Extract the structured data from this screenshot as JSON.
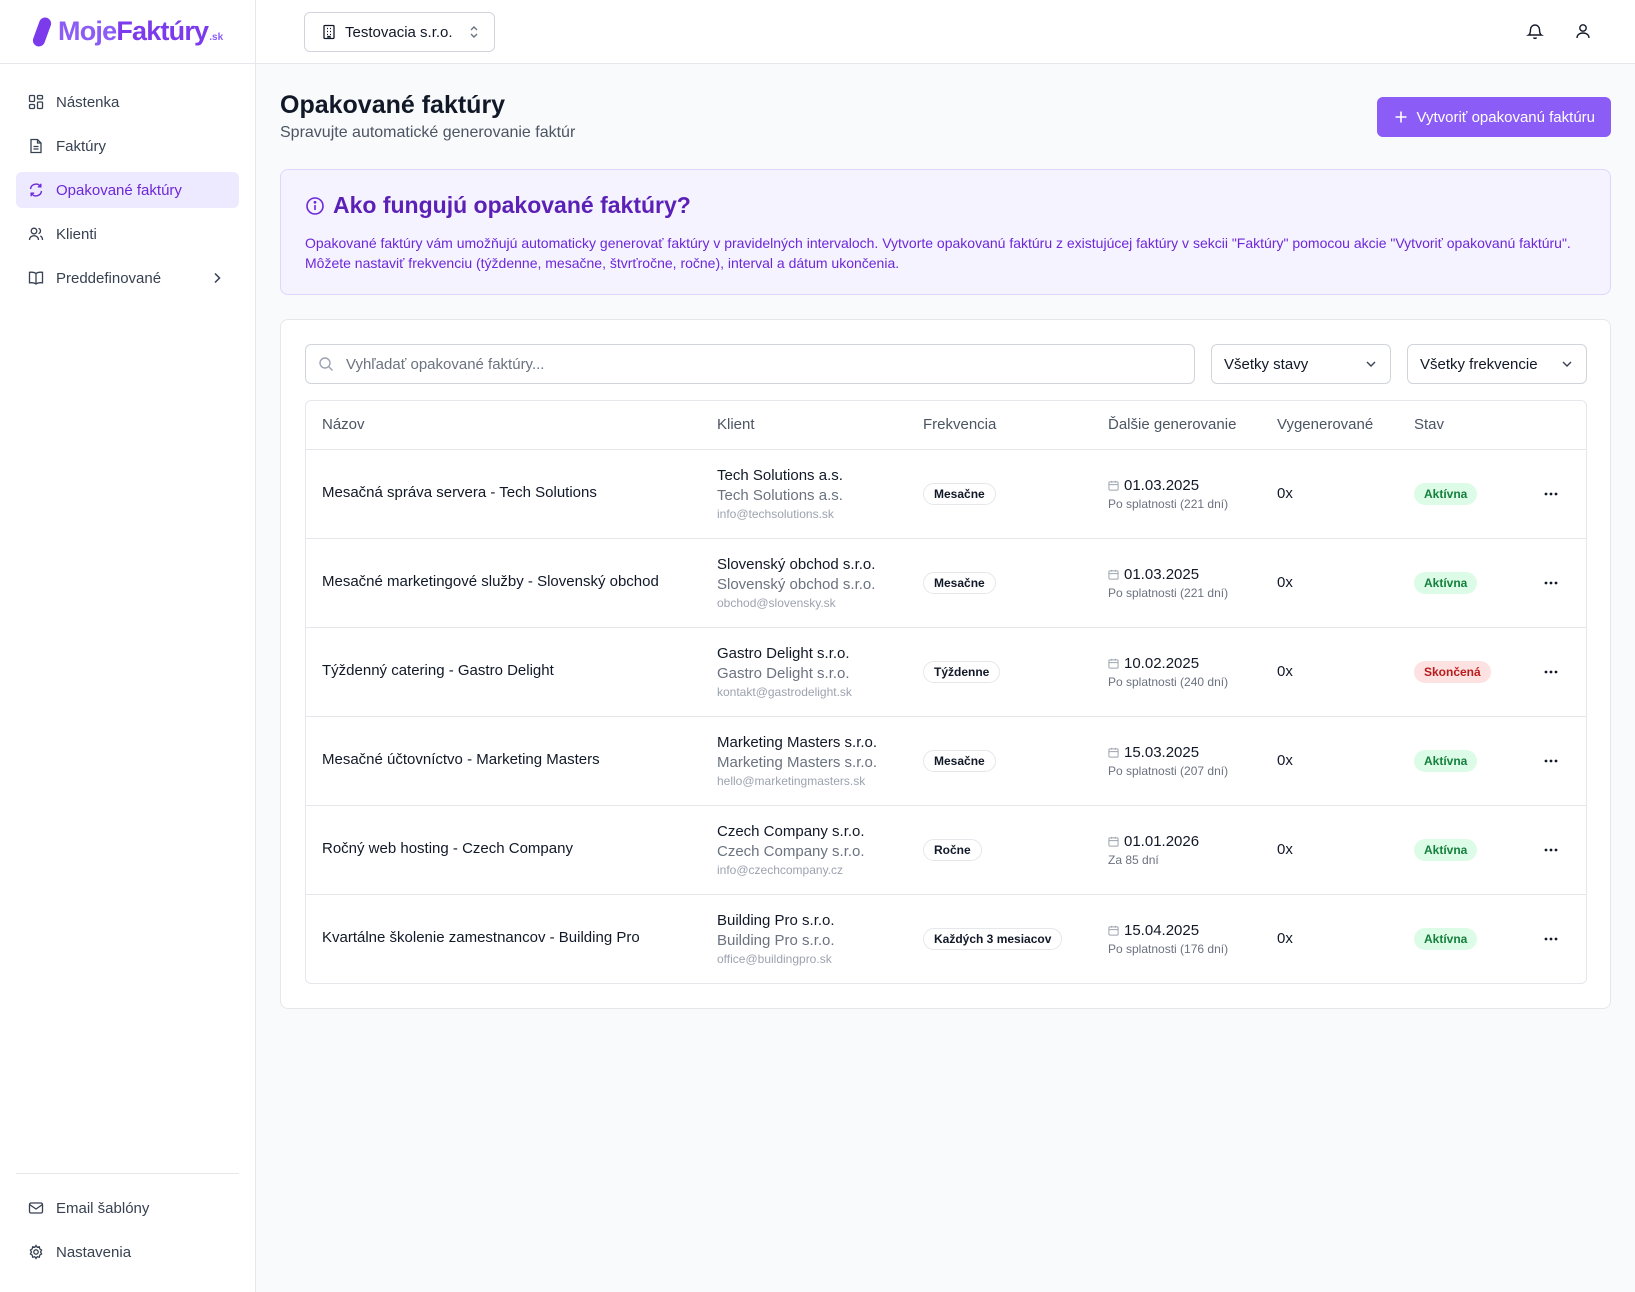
{
  "brand": {
    "part1": "Moje",
    "part2": "Faktúry",
    "suffix": ".sk"
  },
  "sidebar": {
    "items": [
      {
        "label": "Nástenka",
        "icon": "dashboard-icon"
      },
      {
        "label": "Faktúry",
        "icon": "file-icon"
      },
      {
        "label": "Opakované faktúry",
        "icon": "refresh-icon",
        "active": true
      },
      {
        "label": "Klienti",
        "icon": "users-icon"
      },
      {
        "label": "Preddefinované",
        "icon": "book-icon"
      }
    ],
    "bottom": [
      {
        "label": "Email šablóny",
        "icon": "mail-icon"
      },
      {
        "label": "Nastavenia",
        "icon": "gear-icon"
      }
    ]
  },
  "header": {
    "company": "Testovacia s.r.o."
  },
  "page": {
    "title": "Opakované faktúry",
    "subtitle": "Spravujte automatické generovanie faktúr",
    "create_label": "Vytvoriť opakovanú faktúru"
  },
  "info": {
    "title": "Ako fungujú opakované faktúry?",
    "text": "Opakované faktúry vám umožňujú automaticky generovať faktúry v pravidelných intervaloch. Vytvorte opakovanú faktúru z existujúcej faktúry v sekcii \"Faktúry\" pomocou akcie \"Vytvoriť opakovanú faktúru\". Môžete nastaviť frekvenciu (týždenne, mesačne, štvrťročne, ročne), interval a dátum ukončenia."
  },
  "filters": {
    "search_placeholder": "Vyhľadať opakované faktúry...",
    "status": "Všetky stavy",
    "frequency": "Všetky frekvencie"
  },
  "table": {
    "headers": [
      "Názov",
      "Klient",
      "Frekvencia",
      "Ďalšie generovanie",
      "Vygenerované",
      "Stav"
    ],
    "rows": [
      {
        "name": "Mesačná správa servera - Tech Solutions",
        "client": "Tech Solutions a.s.",
        "client_sub": "Tech Solutions a.s.",
        "email": "info@techsolutions.sk",
        "freq": "Mesačne",
        "date": "01.03.2025",
        "date_note": "Po splatnosti (221 dní)",
        "count": "0x",
        "status": "Aktívna",
        "status_color": "#15803d"
      },
      {
        "name": "Mesačné marketingové služby - Slovenský obchod",
        "client": "Slovenský obchod s.r.o.",
        "client_sub": "Slovenský obchod s.r.o.",
        "email": "obchod@slovensky.sk",
        "freq": "Mesačne",
        "date": "01.03.2025",
        "date_note": "Po splatnosti (221 dní)",
        "count": "0x",
        "status": "Aktívna",
        "status_color": "#15803d"
      },
      {
        "name": "Týždenný catering - Gastro Delight",
        "client": "Gastro Delight s.r.o.",
        "client_sub": "Gastro Delight s.r.o.",
        "email": "kontakt@gastrodelight.sk",
        "freq": "Týždenne",
        "date": "10.02.2025",
        "date_note": "Po splatnosti (240 dní)",
        "count": "0x",
        "status": "Skončená",
        "status_color": "#b91c1c"
      },
      {
        "name": "Mesačné účtovníctvo - Marketing Masters",
        "client": "Marketing Masters s.r.o.",
        "client_sub": "Marketing Masters s.r.o.",
        "email": "hello@marketingmasters.sk",
        "freq": "Mesačne",
        "date": "15.03.2025",
        "date_note": "Po splatnosti (207 dní)",
        "count": "0x",
        "status": "Aktívna",
        "status_color": "#15803d"
      },
      {
        "name": "Ročný web hosting - Czech Company",
        "client": "Czech Company s.r.o.",
        "client_sub": "Czech Company s.r.o.",
        "email": "info@czechcompany.cz",
        "freq": "Ročne",
        "date": "01.01.2026",
        "date_note": "Za 85 dní",
        "count": "0x",
        "status": "Aktívna",
        "status_color": "#15803d"
      },
      {
        "name": "Kvartálne školenie zamestnancov - Building Pro",
        "client": "Building Pro s.r.o.",
        "client_sub": "Building Pro s.r.o.",
        "email": "office@buildingpro.sk",
        "freq": "Každých 3 mesiacov",
        "date": "15.04.2025",
        "date_note": "Po splatnosti (176 dní)",
        "count": "0x",
        "status": "Aktívna",
        "status_color": "#15803d"
      }
    ]
  },
  "colors": {
    "accent": "#8b5cf6",
    "active_bg": "#ede9fe",
    "info_bg": "#f5f3ff"
  }
}
